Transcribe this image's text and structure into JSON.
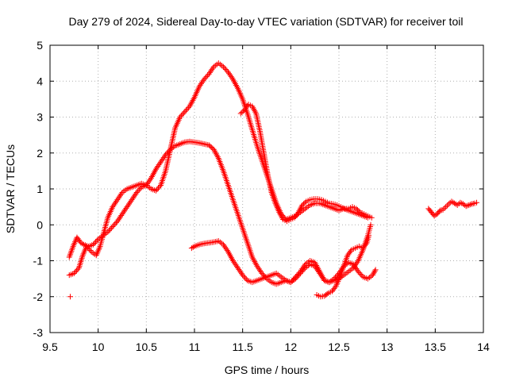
{
  "chart_data": {
    "type": "scatter",
    "title": "Day 279 of 2024, Sidereal Day-to-day VTEC variation (SDTVAR) for receiver toil",
    "xlabel": "GPS time / hours",
    "ylabel": "SDTVAR / TECUs",
    "xlim": [
      9.5,
      14
    ],
    "ylim": [
      -3,
      5
    ],
    "xticks": [
      9.5,
      10,
      10.5,
      11,
      11.5,
      12,
      12.5,
      13,
      13.5,
      14
    ],
    "yticks": [
      -3,
      -2,
      -1,
      0,
      1,
      2,
      3,
      4,
      5
    ],
    "grid": true,
    "marker": "+",
    "color": "#ff0000",
    "series": [
      {
        "name": "pass A",
        "x": [
          9.7,
          9.74,
          9.78,
          9.82,
          9.85,
          9.9,
          9.95,
          10.0,
          10.05,
          10.1,
          10.15,
          10.2,
          10.25,
          10.3,
          10.35,
          10.4,
          10.45,
          10.5,
          10.55,
          10.6,
          10.65,
          10.7,
          10.75,
          10.8,
          10.85,
          10.9,
          10.95,
          11.0,
          11.05,
          11.1,
          11.15,
          11.2,
          11.25,
          11.3,
          11.35,
          11.4,
          11.45,
          11.5,
          11.55,
          11.6,
          11.65,
          11.7,
          11.75,
          11.8,
          11.85,
          11.9,
          11.95,
          12.0,
          12.05,
          12.1,
          12.15,
          12.2,
          12.25,
          12.3,
          12.35,
          12.4,
          12.45,
          12.5,
          12.55,
          12.6,
          12.65,
          12.7,
          12.75,
          12.8,
          12.83
        ],
        "y": [
          -0.9,
          -0.6,
          -0.35,
          -0.5,
          -0.55,
          -0.6,
          -0.55,
          -0.4,
          -0.3,
          -0.2,
          -0.05,
          0.1,
          0.3,
          0.5,
          0.7,
          0.9,
          1.05,
          1.1,
          1.3,
          1.55,
          1.75,
          1.95,
          2.1,
          2.2,
          2.25,
          2.3,
          2.32,
          2.3,
          2.28,
          2.25,
          2.22,
          2.1,
          1.85,
          1.5,
          1.1,
          0.7,
          0.3,
          -0.1,
          -0.5,
          -0.9,
          -1.15,
          -1.35,
          -1.5,
          -1.6,
          -1.65,
          -1.6,
          -1.55,
          -1.6,
          -1.5,
          -1.35,
          -1.2,
          -1.1,
          -1.15,
          -1.35,
          -1.55,
          -1.6,
          -1.55,
          -1.5,
          -1.4,
          -1.3,
          -1.2,
          -1.0,
          -0.7,
          -0.3,
          0.0
        ]
      },
      {
        "name": "pass B",
        "x": [
          9.7,
          9.75,
          9.8,
          9.84,
          9.88,
          9.93,
          9.98,
          10.02,
          10.05,
          10.1,
          10.15,
          10.2,
          10.25,
          10.3,
          10.35,
          10.4,
          10.45,
          10.5,
          10.55,
          10.6,
          10.65,
          10.7,
          10.75,
          10.8,
          10.85,
          10.9,
          10.95,
          11.0,
          11.05,
          11.1,
          11.15,
          11.2,
          11.25,
          11.3,
          11.35,
          11.4,
          11.45,
          11.5,
          11.55,
          11.6,
          11.65,
          11.7,
          11.75,
          11.8,
          11.85,
          11.9,
          11.95,
          12.0,
          12.05,
          12.1,
          12.15,
          12.2,
          12.25,
          12.3,
          12.35,
          12.4,
          12.45,
          12.5,
          12.55,
          12.6,
          12.65,
          12.7,
          12.75,
          12.8
        ],
        "y": [
          -1.4,
          -1.35,
          -1.2,
          -0.85,
          -0.6,
          -0.75,
          -0.85,
          -0.6,
          -0.3,
          0.2,
          0.5,
          0.7,
          0.9,
          1.0,
          1.05,
          1.1,
          1.15,
          1.1,
          1.0,
          0.95,
          1.1,
          1.5,
          2.1,
          2.7,
          3.0,
          3.15,
          3.3,
          3.55,
          3.85,
          4.05,
          4.2,
          4.4,
          4.5,
          4.4,
          4.25,
          4.05,
          3.8,
          3.5,
          3.1,
          2.65,
          2.2,
          1.8,
          1.4,
          1.0,
          0.6,
          0.3,
          0.15,
          0.2,
          0.25,
          0.35,
          0.45,
          0.55,
          0.6,
          0.6,
          0.55,
          0.5,
          0.45,
          0.4,
          0.45,
          0.4,
          0.35,
          0.3,
          0.25,
          0.2
        ]
      },
      {
        "name": "pass C",
        "x": [
          10.97,
          11.0,
          11.05,
          11.1,
          11.15,
          11.2,
          11.25,
          11.3,
          11.35,
          11.4,
          11.45,
          11.5,
          11.55,
          11.6,
          11.65,
          11.7,
          11.75,
          11.8,
          11.85,
          11.9,
          11.95,
          12.0,
          12.05,
          12.1,
          12.15,
          12.2,
          12.25,
          12.3,
          12.35,
          12.4,
          12.45,
          12.5,
          12.55,
          12.6,
          12.65,
          12.7,
          12.75,
          12.8,
          12.85,
          12.88
        ],
        "y": [
          -0.65,
          -0.6,
          -0.55,
          -0.52,
          -0.5,
          -0.48,
          -0.45,
          -0.55,
          -0.75,
          -1.0,
          -1.2,
          -1.4,
          -1.55,
          -1.6,
          -1.55,
          -1.5,
          -1.45,
          -1.4,
          -1.35,
          -1.45,
          -1.55,
          -1.6,
          -1.45,
          -1.3,
          -1.1,
          -1.0,
          -1.05,
          -1.3,
          -1.55,
          -1.6,
          -1.5,
          -1.35,
          -1.15,
          -1.05,
          -1.1,
          -1.3,
          -1.45,
          -1.5,
          -1.4,
          -1.25
        ]
      },
      {
        "name": "pass D",
        "x": [
          11.48,
          11.52,
          11.56,
          11.6,
          11.64,
          11.68,
          11.72,
          11.76,
          11.8,
          11.84,
          11.88,
          11.92,
          11.96,
          12.0,
          12.04,
          12.08,
          12.12,
          12.16,
          12.2,
          12.24,
          12.28,
          12.32,
          12.36,
          12.4,
          12.44,
          12.48,
          12.52,
          12.56,
          12.6,
          12.64,
          12.68,
          12.72,
          12.76,
          12.8,
          12.84
        ],
        "y": [
          3.1,
          3.2,
          3.35,
          3.3,
          3.1,
          2.6,
          2.0,
          1.4,
          0.9,
          0.6,
          0.35,
          0.15,
          0.1,
          0.15,
          0.2,
          0.35,
          0.55,
          0.65,
          0.7,
          0.72,
          0.72,
          0.7,
          0.65,
          0.6,
          0.58,
          0.55,
          0.5,
          0.45,
          0.45,
          0.5,
          0.45,
          0.35,
          0.3,
          0.25,
          0.2
        ]
      },
      {
        "name": "pass E",
        "x": [
          12.27,
          12.31,
          12.35,
          12.39,
          12.43,
          12.47,
          12.51,
          12.55,
          12.59,
          12.63,
          12.67,
          12.71,
          12.75,
          12.79,
          12.81
        ],
        "y": [
          -1.95,
          -2.0,
          -1.98,
          -1.9,
          -1.85,
          -1.7,
          -1.45,
          -1.15,
          -0.85,
          -0.7,
          -0.65,
          -0.6,
          -0.65,
          -0.5,
          -0.3
        ]
      },
      {
        "name": "pass F",
        "x": [
          13.43,
          13.46,
          13.49,
          13.52,
          13.55,
          13.58,
          13.61,
          13.64,
          13.67,
          13.7,
          13.73,
          13.76,
          13.79,
          13.82,
          13.85,
          13.88,
          13.91,
          13.93
        ],
        "y": [
          0.45,
          0.35,
          0.25,
          0.3,
          0.4,
          0.42,
          0.5,
          0.58,
          0.65,
          0.6,
          0.55,
          0.62,
          0.58,
          0.52,
          0.55,
          0.58,
          0.6,
          0.62
        ]
      },
      {
        "name": "outlier",
        "x": [
          9.71
        ],
        "y": [
          -2.0
        ]
      }
    ]
  }
}
